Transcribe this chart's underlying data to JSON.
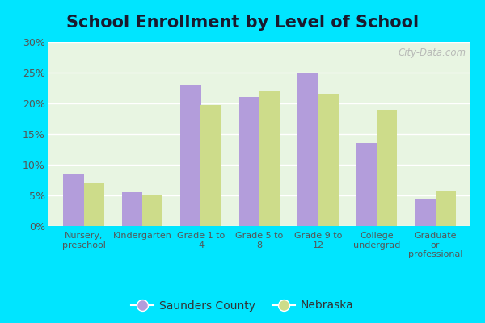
{
  "title": "School Enrollment by Level of School",
  "categories": [
    "Nursery,\npreschool",
    "Kindergarten",
    "Grade 1 to\n4",
    "Grade 5 to\n8",
    "Grade 9 to\n12",
    "College\nundergrad",
    "Graduate\nor\nprofessional"
  ],
  "saunders_values": [
    8.5,
    5.5,
    23.0,
    21.0,
    25.0,
    13.5,
    4.5
  ],
  "nebraska_values": [
    7.0,
    5.0,
    19.8,
    22.0,
    21.5,
    19.0,
    5.8
  ],
  "saunders_color": "#b39ddb",
  "nebraska_color": "#cddc8a",
  "ylim": [
    0,
    30
  ],
  "yticks": [
    0,
    5,
    10,
    15,
    20,
    25,
    30
  ],
  "ytick_labels": [
    "0%",
    "5%",
    "10%",
    "15%",
    "20%",
    "25%",
    "30%"
  ],
  "legend_labels": [
    "Saunders County",
    "Nebraska"
  ],
  "background_color": "#e8f5e2",
  "outer_background": "#00e5ff",
  "title_fontsize": 15,
  "bar_width": 0.35,
  "watermark": "City-Data.com"
}
